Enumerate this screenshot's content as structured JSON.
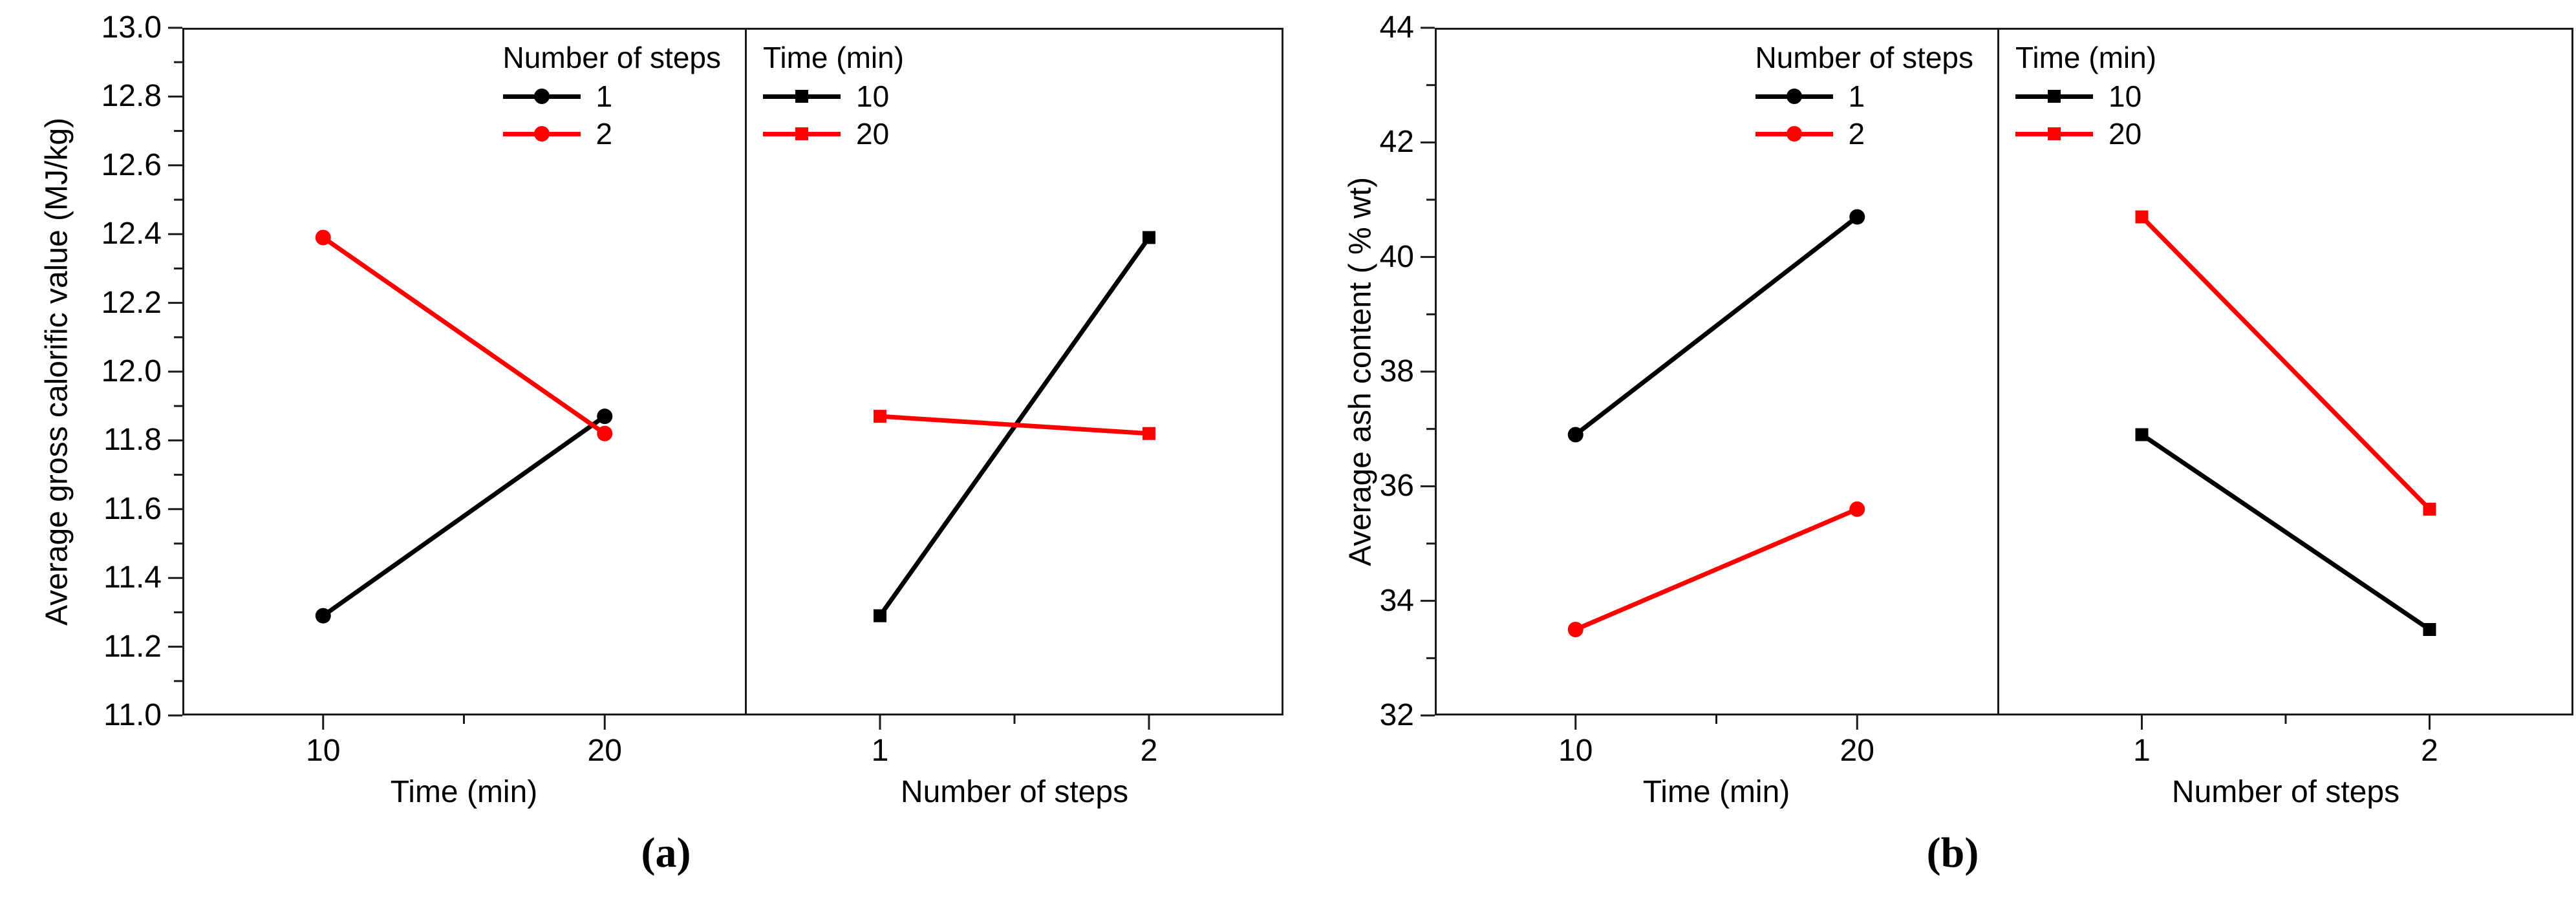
{
  "figure": {
    "background": "#ffffff"
  },
  "colors": {
    "axis": "#1a1a1a",
    "series_black": "#000000",
    "series_red": "#ff0000",
    "text": "#000000"
  },
  "chart_data": [
    {
      "id": "a",
      "type": "line",
      "caption": "(a)",
      "ylabel": "Average gross calorific value (MJ/kg)",
      "ylim": [
        11.0,
        13.0
      ],
      "y_major_step": 0.2,
      "y_minor_step": 0.1,
      "y_tick_labels": [
        "13.0",
        "12.8",
        "12.6",
        "12.4",
        "12.2",
        "12.0",
        "11.8",
        "11.6",
        "11.4",
        "11.2",
        "11.0"
      ],
      "grid": false,
      "subplots": [
        {
          "xlabel": "Time (min)",
          "x": [
            10,
            20
          ],
          "x_tick_labels": [
            "10",
            "20"
          ],
          "legend_title": "Number of steps",
          "legend_position": "inside-top-right",
          "series": [
            {
              "name": "1",
              "color": "#000000",
              "marker": "circle",
              "values": [
                11.29,
                11.87
              ]
            },
            {
              "name": "2",
              "color": "#ff0000",
              "marker": "circle",
              "values": [
                12.39,
                11.82
              ]
            }
          ]
        },
        {
          "xlabel": "Number of steps",
          "x": [
            1,
            2
          ],
          "x_tick_labels": [
            "1",
            "2"
          ],
          "legend_title": "Time (min)",
          "legend_position": "inside-top-left",
          "series": [
            {
              "name": "10",
              "color": "#000000",
              "marker": "square",
              "values": [
                11.29,
                12.39
              ]
            },
            {
              "name": "20",
              "color": "#ff0000",
              "marker": "square",
              "values": [
                11.87,
                11.82
              ]
            }
          ]
        }
      ]
    },
    {
      "id": "b",
      "type": "line",
      "caption": "(b)",
      "ylabel": "Average ash content ( % wt)",
      "ylim": [
        32,
        44
      ],
      "y_major_step": 2,
      "y_minor_step": 1,
      "y_tick_labels": [
        "44",
        "42",
        "40",
        "38",
        "36",
        "34",
        "32"
      ],
      "grid": false,
      "subplots": [
        {
          "xlabel": "Time (min)",
          "x": [
            10,
            20
          ],
          "x_tick_labels": [
            "10",
            "20"
          ],
          "legend_title": "Number of steps",
          "legend_position": "inside-top-right",
          "series": [
            {
              "name": "1",
              "color": "#000000",
              "marker": "circle",
              "values": [
                36.9,
                40.7
              ]
            },
            {
              "name": "2",
              "color": "#ff0000",
              "marker": "circle",
              "values": [
                33.5,
                35.6
              ]
            }
          ]
        },
        {
          "xlabel": "Number of steps",
          "x": [
            1,
            2
          ],
          "x_tick_labels": [
            "1",
            "2"
          ],
          "legend_title": "Time (min)",
          "legend_position": "inside-top-left",
          "series": [
            {
              "name": "10",
              "color": "#000000",
              "marker": "square",
              "values": [
                36.9,
                33.5
              ]
            },
            {
              "name": "20",
              "color": "#ff0000",
              "marker": "square",
              "values": [
                40.7,
                35.6
              ]
            }
          ]
        }
      ]
    }
  ]
}
